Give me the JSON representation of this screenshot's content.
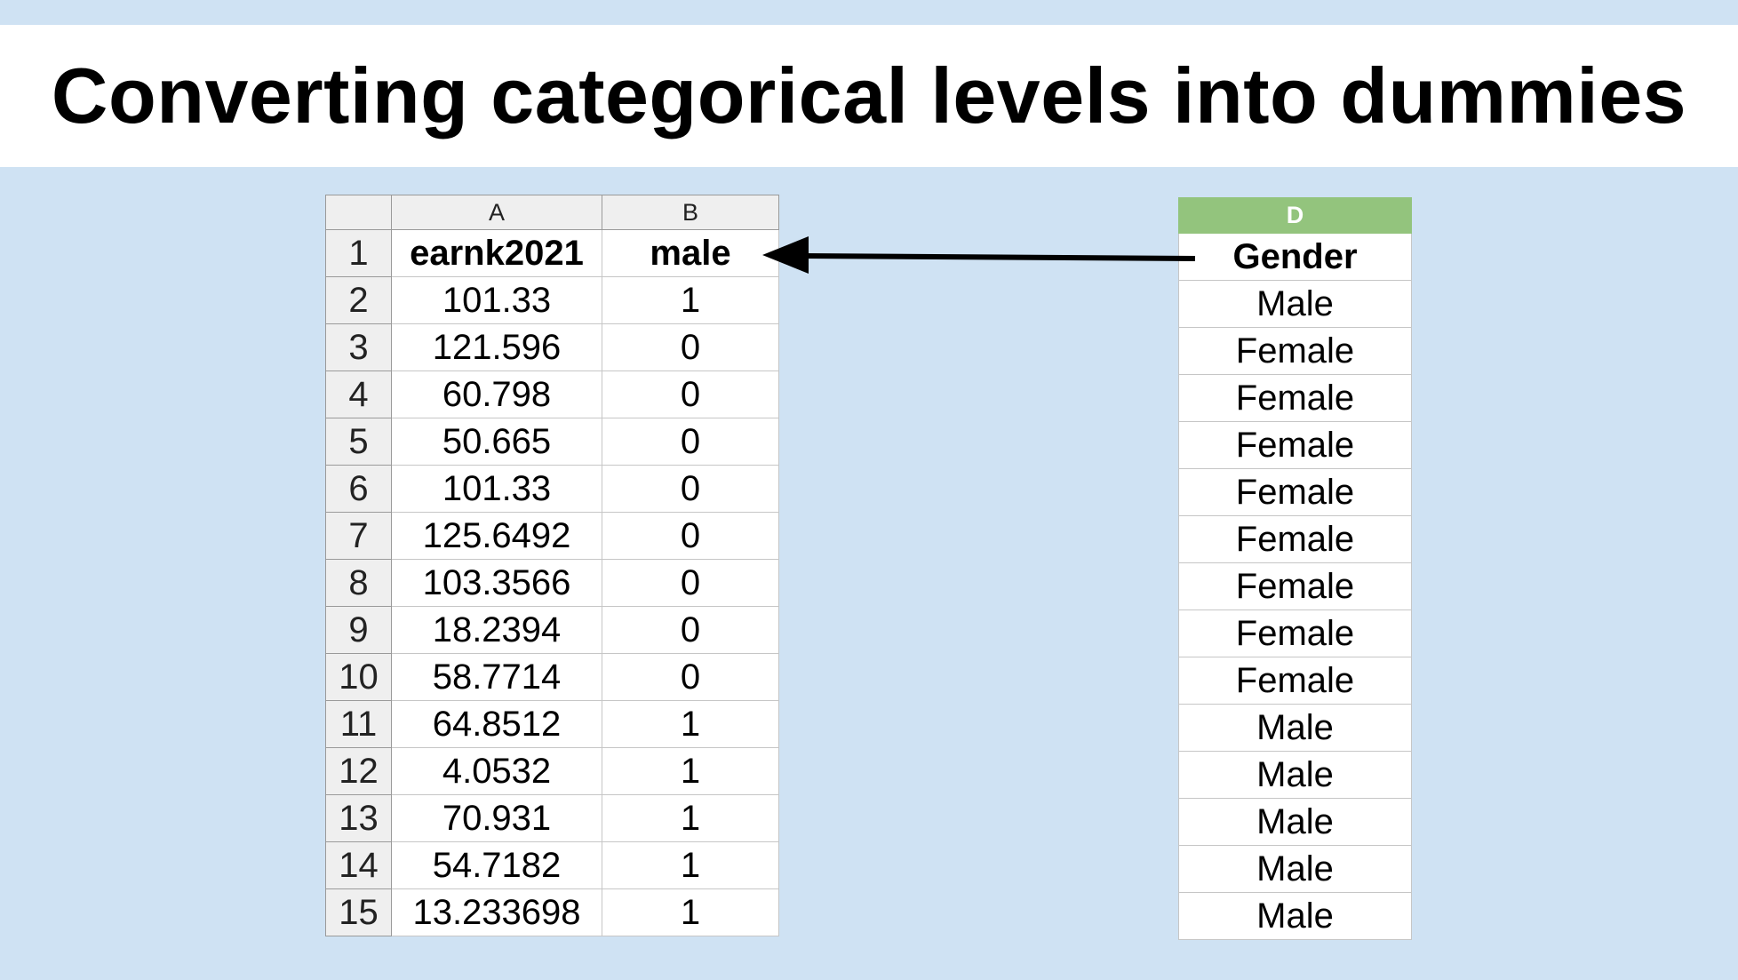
{
  "title": "Converting categorical levels into dummies",
  "left_sheet": {
    "columns": [
      "A",
      "B"
    ],
    "rows": [
      {
        "num": "1",
        "a": "earnk2021",
        "b": "male"
      },
      {
        "num": "2",
        "a": "101.33",
        "b": "1"
      },
      {
        "num": "3",
        "a": "121.596",
        "b": "0"
      },
      {
        "num": "4",
        "a": "60.798",
        "b": "0"
      },
      {
        "num": "5",
        "a": "50.665",
        "b": "0"
      },
      {
        "num": "6",
        "a": "101.33",
        "b": "0"
      },
      {
        "num": "7",
        "a": "125.6492",
        "b": "0"
      },
      {
        "num": "8",
        "a": "103.3566",
        "b": "0"
      },
      {
        "num": "9",
        "a": "18.2394",
        "b": "0"
      },
      {
        "num": "10",
        "a": "58.7714",
        "b": "0"
      },
      {
        "num": "11",
        "a": "64.8512",
        "b": "1"
      },
      {
        "num": "12",
        "a": "4.0532",
        "b": "1"
      },
      {
        "num": "13",
        "a": "70.931",
        "b": "1"
      },
      {
        "num": "14",
        "a": "54.7182",
        "b": "1"
      },
      {
        "num": "15",
        "a": "13.233698",
        "b": "1"
      }
    ]
  },
  "right_sheet": {
    "column": "D",
    "header_color": "#93c47d",
    "values": [
      "Gender",
      "Male",
      "Female",
      "Female",
      "Female",
      "Female",
      "Female",
      "Female",
      "Female",
      "Female",
      "Male",
      "Male",
      "Male",
      "Male",
      "Male"
    ]
  },
  "colors": {
    "background": "#cfe2f3",
    "title_band": "#ffffff",
    "arrow": "#000000"
  },
  "arrow_icon": "arrow-left-icon"
}
